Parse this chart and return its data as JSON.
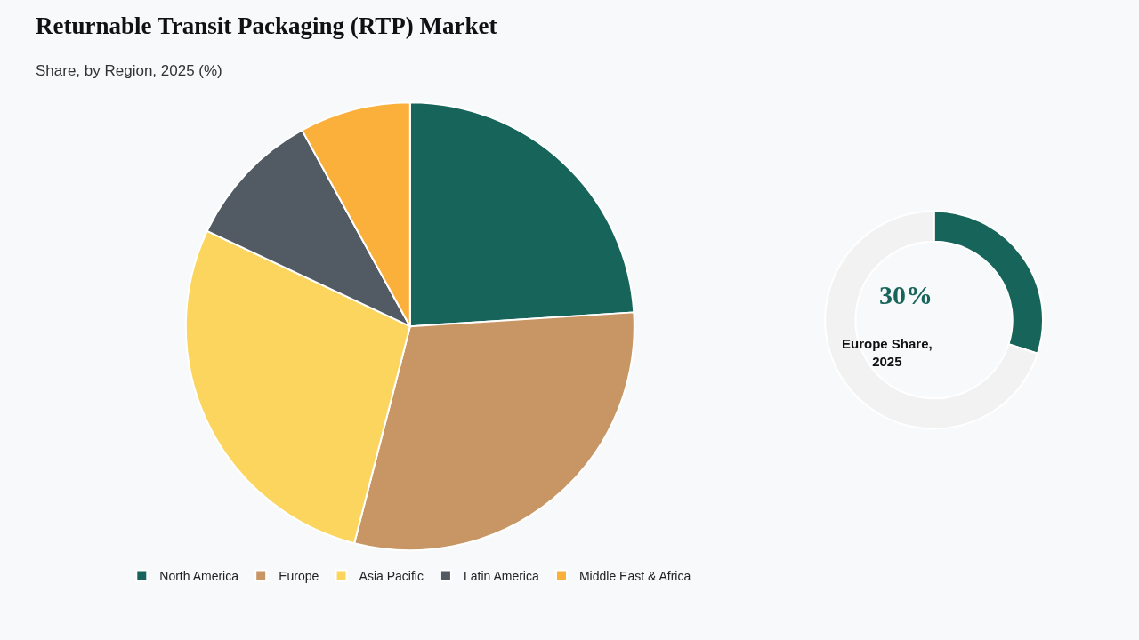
{
  "chart_data": [
    {
      "type": "pie",
      "title": "Returnable Transit Packaging (RTP) Market",
      "subtitle": "Share, by Region, 2025 (%)",
      "categories": [
        "North America",
        "Europe",
        "Asia Pacific",
        "Latin America",
        "Middle East & Africa"
      ],
      "values": [
        24,
        30,
        28,
        10,
        8
      ],
      "colors": [
        "#17645a",
        "#c89664",
        "#fcd55f",
        "#525a64",
        "#fbb03b"
      ],
      "legend": "bottom"
    },
    {
      "type": "donut",
      "categories": [
        null,
        null
      ],
      "values": [
        30,
        70
      ],
      "colors": [
        "#17645a",
        "#f2f2f2"
      ],
      "annotations": [
        "30%",
        "Europe Share, 2025"
      ]
    }
  ]
}
